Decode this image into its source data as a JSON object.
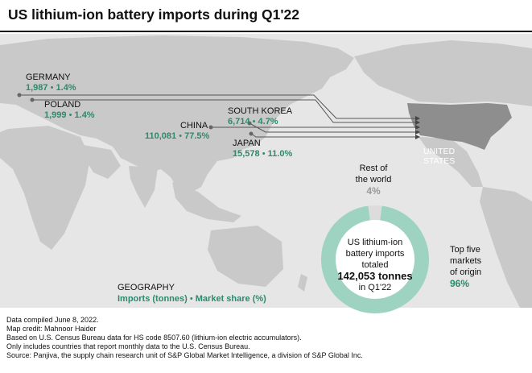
{
  "title": "US lithium-ion battery imports during Q1'22",
  "countries": [
    {
      "key": "germany",
      "name": "GERMANY",
      "tonnes": "1,987",
      "share": "1.4%"
    },
    {
      "key": "poland",
      "name": "POLAND",
      "tonnes": "1,999",
      "share": "1.4%"
    },
    {
      "key": "china",
      "name": "CHINA",
      "tonnes": "110,081",
      "share": "77.5%"
    },
    {
      "key": "south_korea",
      "name": "SOUTH KOREA",
      "tonnes": "6,714",
      "share": "4.7%"
    },
    {
      "key": "japan",
      "name": "JAPAN",
      "tonnes": "15,578",
      "share": "11.0%"
    }
  ],
  "destination": {
    "line1": "UNITED",
    "line2": "STATES"
  },
  "donut": {
    "center_line1": "US lithium-ion",
    "center_line2": "battery imports",
    "center_line3": "totaled",
    "center_total": "142,053 tonnes",
    "center_line5": "in Q1'22",
    "rest_line1": "Rest of",
    "rest_line2": "the world",
    "rest_pct": "4%",
    "top5_line1": "Top five",
    "top5_line2": "markets",
    "top5_line3": "of origin",
    "top5_pct": "96%",
    "top5_share": 96,
    "rest_share": 4,
    "color_top5": "#9fd3c1",
    "color_rest": "#dcdcdc"
  },
  "legend": {
    "title": "GEOGRAPHY",
    "imports": "Imports (tonnes)",
    "sep": "•",
    "share": "Market share (%)"
  },
  "colors": {
    "accent": "#2c8a6e",
    "land": "#c9c9c9",
    "us_land": "#8e8e8e",
    "ocean": "#e6e6e6"
  },
  "notes": [
    "Data compiled June 8, 2022.",
    "Map credit: Mahnoor Haider",
    "Based on U.S. Census Bureau data for HS code 8507.60 (lithium-ion electric accumulators).",
    "Only includes countries that report monthly data to the U.S. Census Bureau.",
    "Source: Panjiva, the supply chain research unit of S&P Global Market Intelligence, a division of S&P Global Inc."
  ]
}
